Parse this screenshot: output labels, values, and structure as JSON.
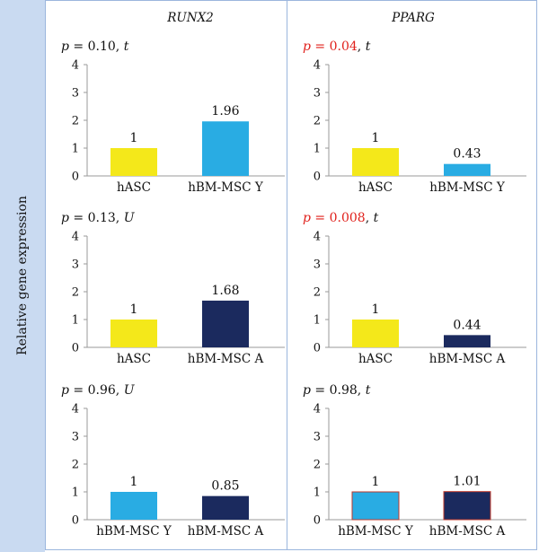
{
  "y_axis_label": "Relative gene expression",
  "column_titles": [
    "RUNX2",
    "PPARG"
  ],
  "colors": {
    "hASC": "#f4e81a",
    "hBM-MSC Y": "#29ace3",
    "hBM-MSC A": "#1b2a5e",
    "significant": "#e0201b",
    "normal": "#111111"
  },
  "chart_data": [
    {
      "type": "bar",
      "gene": "RUNX2",
      "stat_p": "0.10",
      "stat_test": "t",
      "significant": false,
      "categories": [
        "hASC",
        "hBM-MSC Y"
      ],
      "values": [
        1,
        1.96
      ],
      "data_labels": [
        "1",
        "1.96"
      ],
      "ylim": [
        0,
        4
      ],
      "yticks": [
        "0",
        "1",
        "2",
        "3",
        "4"
      ]
    },
    {
      "type": "bar",
      "gene": "PPARG",
      "stat_p": "0.04",
      "stat_test": "t",
      "significant": true,
      "categories": [
        "hASC",
        "hBM-MSC Y"
      ],
      "values": [
        1,
        0.43
      ],
      "data_labels": [
        "1",
        "0.43"
      ],
      "ylim": [
        0,
        4
      ],
      "yticks": [
        "0",
        "1",
        "2",
        "3",
        "4"
      ]
    },
    {
      "type": "bar",
      "gene": "RUNX2",
      "stat_p": "0.13",
      "stat_test": "U",
      "significant": false,
      "categories": [
        "hASC",
        "hBM-MSC A"
      ],
      "values": [
        1,
        1.68
      ],
      "data_labels": [
        "1",
        "1.68"
      ],
      "ylim": [
        0,
        4
      ],
      "yticks": [
        "0",
        "1",
        "2",
        "3",
        "4"
      ]
    },
    {
      "type": "bar",
      "gene": "PPARG",
      "stat_p": "0.008",
      "stat_test": "t",
      "significant": true,
      "categories": [
        "hASC",
        "hBM-MSC A"
      ],
      "values": [
        1,
        0.44
      ],
      "data_labels": [
        "1",
        "0.44"
      ],
      "ylim": [
        0,
        4
      ],
      "yticks": [
        "0",
        "1",
        "2",
        "3",
        "4"
      ]
    },
    {
      "type": "bar",
      "gene": "RUNX2",
      "stat_p": "0.96",
      "stat_test": "U",
      "significant": false,
      "categories": [
        "hBM-MSC Y",
        "hBM-MSC A"
      ],
      "values": [
        1,
        0.85
      ],
      "data_labels": [
        "1",
        "0.85"
      ],
      "ylim": [
        0,
        4
      ],
      "yticks": [
        "0",
        "1",
        "2",
        "3",
        "4"
      ]
    },
    {
      "type": "bar",
      "gene": "PPARG",
      "stat_p": "0.98",
      "stat_test": "t",
      "significant": false,
      "categories": [
        "hBM-MSC Y",
        "hBM-MSC A"
      ],
      "values": [
        1,
        1.01
      ],
      "data_labels": [
        "1",
        "1.01"
      ],
      "ylim": [
        0,
        4
      ],
      "yticks": [
        "0",
        "1",
        "2",
        "3",
        "4"
      ]
    }
  ]
}
